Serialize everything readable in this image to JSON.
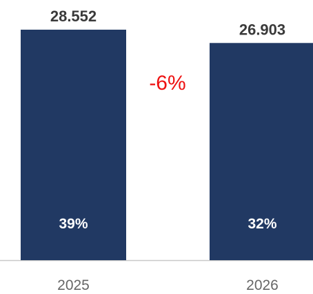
{
  "chart_data": {
    "type": "bar",
    "categories": [
      "2025",
      "2026"
    ],
    "values": [
      28.552,
      26.903
    ],
    "value_labels": [
      "28.552",
      "26.903"
    ],
    "inner_labels": [
      "39%",
      "32%"
    ],
    "change_label": "-6%",
    "title": "",
    "xlabel": "",
    "ylabel": "",
    "ylim": [
      0,
      30
    ],
    "grid": false,
    "legend": "none"
  },
  "colors": {
    "bar": "#213963",
    "value_text": "#3a3a3a",
    "inner_text": "#ffffff",
    "change_text": "#ee1111",
    "axis_line": "#c8c8c8",
    "tick_text": "#666666"
  }
}
